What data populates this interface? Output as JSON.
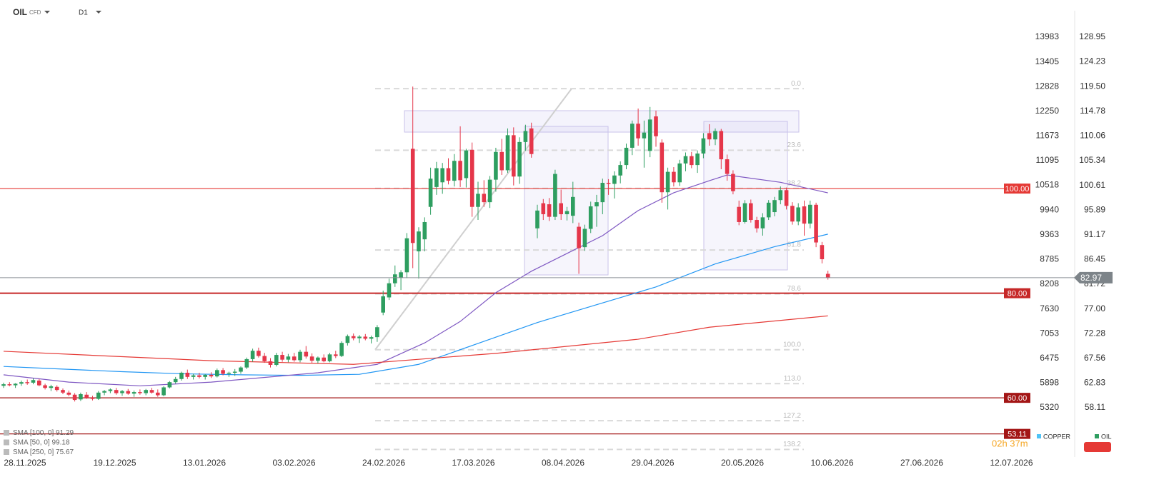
{
  "chart_data": {
    "type": "candlestick",
    "symbol": "OIL",
    "symbol_type": "CFD",
    "interval": "D1",
    "xlabels": [
      "28.11.2025",
      "19.12.2025",
      "13.01.2026",
      "03.02.2026",
      "24.02.2026",
      "17.03.2026",
      "08.04.2026",
      "29.04.2026",
      "20.05.2026",
      "10.06.2026",
      "27.06.2026",
      "12.07.2026"
    ],
    "ylim": [
      48.69,
      131.95
    ],
    "yticks": [
      128.95,
      124.23,
      {
        "value": 119.5,
        "label": "119.50"
      },
      114.78,
      110.06,
      105.34,
      100.61,
      95.89,
      91.17,
      86.45,
      81.72,
      {
        "value": 77,
        "label": "77.00"
      },
      72.28,
      67.56,
      62.83,
      58.11
    ],
    "y2lim": [
      4168,
      14350
    ],
    "y2ticks": [
      13983,
      13405,
      12828,
      12250,
      11673,
      11095,
      10518,
      9940,
      9363,
      8785,
      8208,
      7630,
      7053,
      6475,
      5898,
      5320
    ],
    "copper": {
      "name": "COPPER",
      "color": "#4fc3f7"
    },
    "candles": {
      "name": "OIL",
      "color": "#2e9e60",
      "down_color": "#e5364a",
      "open": [
        62.3,
        62.6,
        62.4,
        62.7,
        63.0,
        62.9,
        63.3,
        62.4,
        61.9,
        62.1,
        61.5,
        61.0,
        60.6,
        59.7,
        60.6,
        60.0,
        59.8,
        61.0,
        61.3,
        61.5,
        60.9,
        61.3,
        60.8,
        61.1,
        60.9,
        61.5,
        61.0,
        60.5,
        62.0,
        63.0,
        63.6,
        64.8,
        64.0,
        64.3,
        64.0,
        64.4,
        64.1,
        65.3,
        64.6,
        64.8,
        65.0,
        65.8,
        67.4,
        69.0,
        68.0,
        67.0,
        66.3,
        68.2,
        67.3,
        67.9,
        67.2,
        68.8,
        67.9,
        67.1,
        67.7,
        67.0,
        68.3,
        68.0,
        70.5,
        71.8,
        71.4,
        71.7,
        71.3,
        71.6,
        76.3,
        79.2,
        81.9,
        83.0,
        84.0,
        107.6,
        88.0,
        90.3,
        96.5,
        100.3,
        101.2,
        103.9,
        101.5,
        105.3,
        102.0,
        107.4,
        96.5,
        99.0,
        97.4,
        101.7,
        107.0,
        103.5,
        110.2,
        102.3,
        108.9,
        111.5,
        92.4,
        97.2,
        97.0,
        94.6,
        97.2,
        95.1,
        94.8,
        92.7,
        88.8,
        92.3,
        96.6,
        97.4,
        101.1,
        100.9,
        102.5,
        104.5,
        107.8,
        112.4,
        109.6,
        107.2,
        113.8,
        108.8,
        99.3,
        103.2,
        101.2,
        104.8,
        106.2,
        104.5,
        106.7,
        110.6,
        109.4,
        111.0,
        105.6,
        102.8,
        96.5,
        93.6,
        97.2,
        94.0,
        92.4,
        94.5,
        95.5,
        97.8,
        99.7,
        96.7,
        93.7,
        96.6,
        93.3,
        96.9,
        89.2,
        83.7
      ],
      "high": [
        62.9,
        63.0,
        62.8,
        63.3,
        63.5,
        63.7,
        63.6,
        62.7,
        62.5,
        62.4,
        61.8,
        61.4,
        60.9,
        61.0,
        61.1,
        60.4,
        61.3,
        61.5,
        61.8,
        61.9,
        61.5,
        61.7,
        61.4,
        61.6,
        61.7,
        61.9,
        61.6,
        62.2,
        63.2,
        64.0,
        65.0,
        65.4,
        64.6,
        64.8,
        64.5,
        64.9,
        65.6,
        65.7,
        65.0,
        65.5,
        66.0,
        67.7,
        69.4,
        69.6,
        68.6,
        67.6,
        68.6,
        68.8,
        68.4,
        68.6,
        69.2,
        69.9,
        68.5,
        67.9,
        68.3,
        68.6,
        69.0,
        70.8,
        72.1,
        72.3,
        72.0,
        72.2,
        71.9,
        73.9,
        80.5,
        82.8,
        85.3,
        84.4,
        91.5,
        119.5,
        92.6,
        94.5,
        104.0,
        105.1,
        104.9,
        105.8,
        106.6,
        111.9,
        107.6,
        108.8,
        101.3,
        101.6,
        102.4,
        107.8,
        109.5,
        111.5,
        111.7,
        109.8,
        112.2,
        112.6,
        96.9,
        98.0,
        98.2,
        103.6,
        99.8,
        96.5,
        101.3,
        93.5,
        93.1,
        97.5,
        98.8,
        101.9,
        101.8,
        103.3,
        105.2,
        108.6,
        113.0,
        115.3,
        113.0,
        115.6,
        114.9,
        109.4,
        104.0,
        104.1,
        105.5,
        106.9,
        107.0,
        107.3,
        110.6,
        112.3,
        111.5,
        111.4,
        106.5,
        103.5,
        97.7,
        97.8,
        97.9,
        94.6,
        95.3,
        97.8,
        98.4,
        100.4,
        100.2,
        97.4,
        97.2,
        97.7,
        97.7,
        97.3,
        89.8,
        84.3
      ],
      "low": [
        61.9,
        62.2,
        61.9,
        62.3,
        62.5,
        62.6,
        62.2,
        61.6,
        61.3,
        61.2,
        60.7,
        60.3,
        59.3,
        59.4,
        59.8,
        59.5,
        59.6,
        60.5,
        60.9,
        60.6,
        60.4,
        60.6,
        60.2,
        60.6,
        60.5,
        60.8,
        60.2,
        60.3,
        61.8,
        62.7,
        63.3,
        63.6,
        63.5,
        63.7,
        63.5,
        63.8,
        63.9,
        64.3,
        64.0,
        64.2,
        64.6,
        65.5,
        66.9,
        67.7,
        66.7,
        65.8,
        66.0,
        66.9,
        66.8,
        66.9,
        66.8,
        67.5,
        66.7,
        66.6,
        66.8,
        66.8,
        67.6,
        67.8,
        70.0,
        71.0,
        70.5,
        71.0,
        70.4,
        70.7,
        75.8,
        78.7,
        81.2,
        80.6,
        82.9,
        84.8,
        82.8,
        88.0,
        95.0,
        98.8,
        99.0,
        100.8,
        100.4,
        100.3,
        100.2,
        94.6,
        94.0,
        96.5,
        96.3,
        99.4,
        102.6,
        103.0,
        100.6,
        100.9,
        107.2,
        105.9,
        90.5,
        94.0,
        93.8,
        94.0,
        94.0,
        93.9,
        93.4,
        83.7,
        88.1,
        91.5,
        92.7,
        95.1,
        98.8,
        98.1,
        101.0,
        103.7,
        106.4,
        108.2,
        104.0,
        106.0,
        108.0,
        97.3,
        96.0,
        100.4,
        100.5,
        103.3,
        103.9,
        103.0,
        105.8,
        108.2,
        108.3,
        103.7,
        101.5,
        98.9,
        93.0,
        93.3,
        93.5,
        91.6,
        91.0,
        94.0,
        94.7,
        97.0,
        96.0,
        93.1,
        93.0,
        91.0,
        92.4,
        88.8,
        85.7,
        82.6
      ],
      "close": [
        62.6,
        62.4,
        62.7,
        63.0,
        62.8,
        63.4,
        62.4,
        61.9,
        62.2,
        61.5,
        61.0,
        60.6,
        59.6,
        60.7,
        60.0,
        59.8,
        61.0,
        61.3,
        61.6,
        60.9,
        61.3,
        60.8,
        61.1,
        60.9,
        61.5,
        61.0,
        60.5,
        62.0,
        63.0,
        63.6,
        64.8,
        64.0,
        64.3,
        64.0,
        64.4,
        64.1,
        65.3,
        64.6,
        64.8,
        65.0,
        65.8,
        67.4,
        69.0,
        68.0,
        67.0,
        66.3,
        68.2,
        67.3,
        67.9,
        67.2,
        68.8,
        67.9,
        67.1,
        67.7,
        67.0,
        68.3,
        68.0,
        70.5,
        71.8,
        71.4,
        71.7,
        71.3,
        71.6,
        73.5,
        79.4,
        81.9,
        83.6,
        84.0,
        90.5,
        89.6,
        91.8,
        93.6,
        101.9,
        103.9,
        103.9,
        101.5,
        105.3,
        101.6,
        107.3,
        96.5,
        99.0,
        97.4,
        101.7,
        107.0,
        103.5,
        110.2,
        102.3,
        108.9,
        111.0,
        106.6,
        95.8,
        95.1,
        94.6,
        102.8,
        95.1,
        95.7,
        98.4,
        88.6,
        92.3,
        96.6,
        97.4,
        101.1,
        100.9,
        102.5,
        104.5,
        107.8,
        112.4,
        109.6,
        110.7,
        113.2,
        110.0,
        99.3,
        103.2,
        101.2,
        104.8,
        106.2,
        104.5,
        106.7,
        109.6,
        109.4,
        111.0,
        105.6,
        102.8,
        99.5,
        93.6,
        97.2,
        94.0,
        92.4,
        94.5,
        97.3,
        97.8,
        99.7,
        96.7,
        93.7,
        96.4,
        93.3,
        96.9,
        89.7,
        86.5,
        82.97
      ]
    },
    "indicators": [
      {
        "name": "SMA [100, 0]",
        "color": "#2196f3",
        "x": [
          0,
          10,
          20,
          30,
          40,
          50,
          60,
          70,
          80,
          90,
          100,
          110,
          120,
          130,
          139
        ],
        "values": [
          66.0,
          65.5,
          65.0,
          64.6,
          64.4,
          64.3,
          64.5,
          66.4,
          70.4,
          74.4,
          77.8,
          81.2,
          85.6,
          88.9,
          91.29
        ]
      },
      {
        "name": "SMA [50, 0]",
        "color": "#7e57c2",
        "x": [
          0,
          11,
          23,
          35,
          53,
          63,
          71,
          77,
          83,
          89,
          95,
          101,
          107,
          113,
          119,
          122,
          131,
          139
        ],
        "values": [
          64.4,
          63.0,
          62.3,
          63.0,
          64.8,
          66.4,
          70.5,
          74.6,
          80.1,
          84.2,
          87.6,
          91.0,
          95.8,
          99.2,
          101.5,
          102.6,
          101.2,
          99.18
        ]
      },
      {
        "name": "SMA [250, 0]",
        "color": "#e53935",
        "x": [
          0,
          35,
          59,
          83,
          107,
          119,
          139
        ],
        "values": [
          68.9,
          67.1,
          66.4,
          68.5,
          71.2,
          73.5,
          75.67
        ]
      }
    ],
    "levels": [
      {
        "value": 100,
        "label": "100.00",
        "color": "#e53935"
      },
      {
        "value": 80,
        "label": "80.00",
        "color": "#c62828"
      },
      {
        "value": 60,
        "label": "60.00",
        "color": "#a31515"
      },
      {
        "value": 53.11,
        "label": "53.11",
        "color": "#a31515"
      }
    ],
    "fibonacci": {
      "high": 119.1,
      "low": 69.2,
      "levels": [
        {
          "value": 0,
          "label": "0.0"
        },
        {
          "value": 23.6,
          "label": "23.6"
        },
        {
          "value": 38.2,
          "label": "38.2"
        },
        {
          "value": 61.8,
          "label": "61.8"
        },
        {
          "value": 78.6,
          "label": "78.6"
        },
        {
          "value": 100,
          "label": "100.0"
        },
        {
          "value": 113,
          "label": "113.0"
        },
        {
          "value": 127.2,
          "label": "127.2"
        },
        {
          "value": 138.2,
          "label": "138.2"
        }
      ]
    },
    "countdown": "02h 37m"
  }
}
